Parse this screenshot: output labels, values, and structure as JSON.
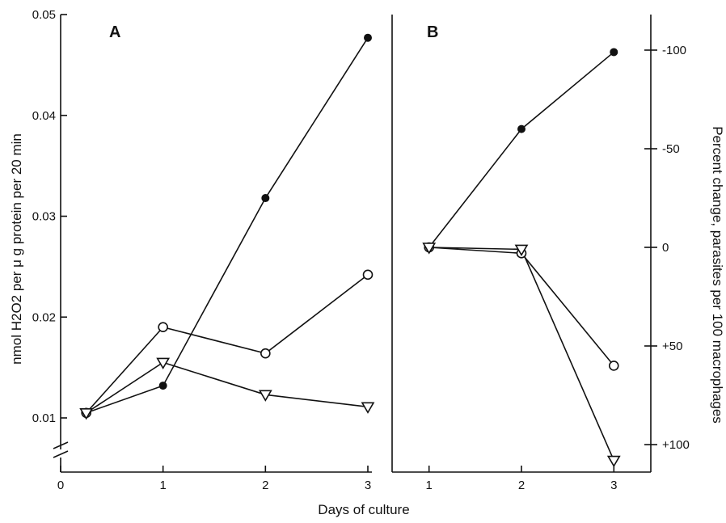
{
  "chart_data": [
    {
      "panel": "A",
      "type": "line",
      "ylabel": "nmol H2O2 per μ g protein per 20 min",
      "xlim": [
        0,
        3
      ],
      "ylim": [
        0.01,
        0.05
      ],
      "x_ticks": [
        "0",
        "1",
        "2",
        "3"
      ],
      "y_ticks": [
        "0.01",
        "0.02",
        "0.03",
        "0.04",
        "0.05"
      ],
      "axis_break": true,
      "series": [
        {
          "marker": "filled-circle",
          "x": [
            0.25,
            1,
            2,
            3
          ],
          "y": [
            0.0105,
            0.0132,
            0.0318,
            0.0477
          ]
        },
        {
          "marker": "open-circle",
          "x": [
            0.25,
            1,
            2,
            3
          ],
          "y": [
            0.0105,
            0.019,
            0.0164,
            0.0242
          ]
        },
        {
          "marker": "open-triangle-down",
          "x": [
            0.25,
            1,
            2,
            3
          ],
          "y": [
            0.0105,
            0.0155,
            0.0123,
            0.0111
          ]
        }
      ]
    },
    {
      "panel": "B",
      "type": "line",
      "ylabel": "Percent change, parasites per 100 macrophages",
      "xlim": [
        0.6,
        3.4
      ],
      "ylim": [
        110,
        -120
      ],
      "x_ticks": [
        "1",
        "2",
        "3"
      ],
      "y_ticks": [
        "-100",
        "-50",
        "0",
        "+50",
        "+100"
      ],
      "series": [
        {
          "marker": "filled-circle",
          "x": [
            1,
            2,
            3
          ],
          "y": [
            0,
            -60,
            -99
          ]
        },
        {
          "marker": "open-circle",
          "x": [
            1,
            2,
            3
          ],
          "y": [
            0,
            3,
            60
          ]
        },
        {
          "marker": "open-triangle-down",
          "x": [
            1,
            2,
            3
          ],
          "y": [
            0,
            1,
            108
          ]
        }
      ]
    }
  ],
  "xlabel": "Days of culture"
}
